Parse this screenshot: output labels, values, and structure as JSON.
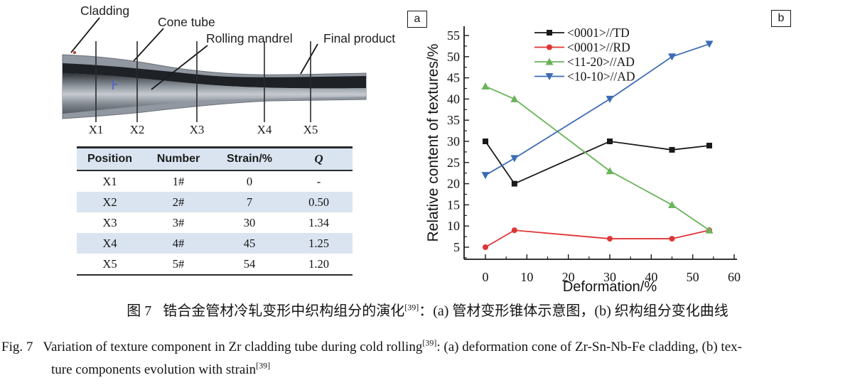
{
  "panel_a": {
    "tag": "a",
    "labels": {
      "cladding": "Cladding",
      "cone_tube": "Cone tube",
      "rolling_mandrel": "Rolling mandrel",
      "final_product": "Final product"
    },
    "positions": [
      "X1",
      "X2",
      "X3",
      "X4",
      "X5"
    ],
    "table": {
      "headers": [
        "Position",
        "Number",
        "Strain/%",
        "Q"
      ],
      "rows": [
        [
          "X1",
          "1#",
          "0",
          "-"
        ],
        [
          "X2",
          "2#",
          "7",
          "0.50"
        ],
        [
          "X3",
          "3#",
          "30",
          "1.34"
        ],
        [
          "X4",
          "4#",
          "45",
          "1.25"
        ],
        [
          "X5",
          "5#",
          "54",
          "1.20"
        ]
      ],
      "stripe_color": "#d9e4f0"
    }
  },
  "panel_b": {
    "tag": "b"
  },
  "chart_data": {
    "type": "line",
    "x": [
      0,
      7,
      30,
      45,
      54
    ],
    "series": [
      {
        "name": "<0001>//TD",
        "color": "#1a1a1a",
        "marker": "square",
        "values": [
          30,
          20,
          30,
          28,
          29
        ]
      },
      {
        "name": "<0001>//RD",
        "color": "#e03436",
        "marker": "circle",
        "values": [
          5,
          9,
          7,
          7,
          9
        ]
      },
      {
        "name": "<11-20>//AD",
        "color": "#6ab35b",
        "marker": "triangle-up",
        "values": [
          43,
          40,
          23,
          15,
          9
        ]
      },
      {
        "name": "<10-10>//AD",
        "color": "#3d6cb4",
        "marker": "triangle-down",
        "values": [
          22,
          26,
          40,
          50,
          53
        ]
      }
    ],
    "xlabel": "Deformation/%",
    "ylabel": "Relative content of textures/%",
    "xlim": [
      -5.1,
      60.7
    ],
    "ylim": [
      2.1,
      57.2
    ],
    "xticks": [
      0,
      10,
      20,
      30,
      40,
      50,
      60
    ],
    "yticks": [
      5,
      10,
      15,
      20,
      25,
      30,
      35,
      40,
      45,
      50,
      55
    ],
    "grid": false,
    "legend_position": "top-left-inside"
  },
  "caption": {
    "zh_fig_label": "图 7",
    "zh_main": "锆合金管材冷轧变形中织构组分的演化",
    "zh_sup": "[39]",
    "zh_rest": "：(a) 管材变形锥体示意图，(b) 织构组分变化曲线",
    "en_fig_label": "Fig. 7",
    "en_line1": "Variation of texture component in Zr cladding tube during cold rolling",
    "en_sup1": "[39]",
    "en_line1_post": ": (a) deformation cone of Zr-Sn-Nb-Fe cladding, (b) tex-",
    "en_line2": "ture components evolution with strain",
    "en_sup2": "[39]"
  }
}
